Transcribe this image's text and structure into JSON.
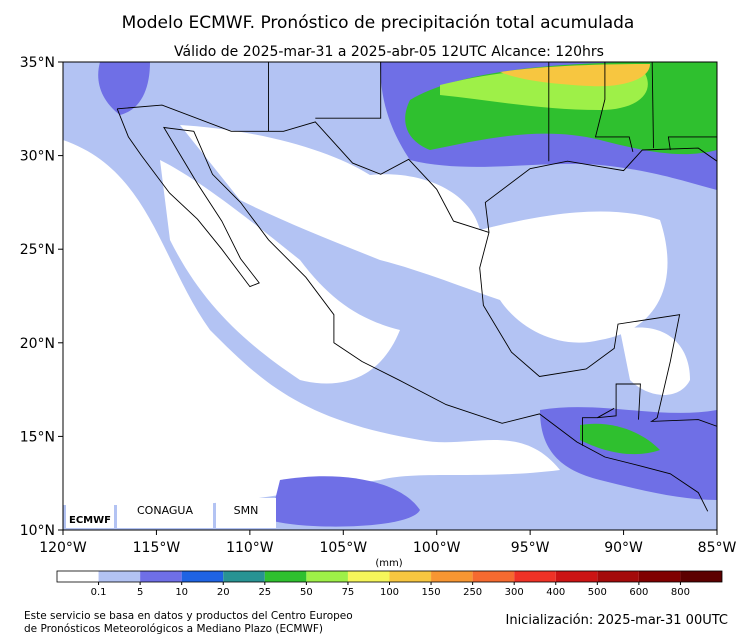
{
  "title": "Modelo ECMWF. Pronóstico de precipitación total acumulada",
  "subtitle": "Válido de 2025-mar-31 a 2025-abr-05 12UTC   Alcance: 120hrs",
  "lat_labels": [
    "35°N",
    "30°N",
    "25°N",
    "20°N",
    "15°N",
    "10°N"
  ],
  "lon_labels": [
    "120°W",
    "115°W",
    "110°W",
    "105°W",
    "100°W",
    "95°W",
    "90°W",
    "85°W"
  ],
  "logos": [
    "ECMWF",
    "CONAGUA",
    "SMN"
  ],
  "colorbar": {
    "unit": "(mm)",
    "labels": [
      0.1,
      5,
      10,
      20,
      25,
      50,
      75,
      100,
      150,
      250,
      300,
      400,
      500,
      600,
      800
    ],
    "colors": [
      "#ffffff",
      "#b3c3f3",
      "#6f6fe6",
      "#1f63e3",
      "#289393",
      "#2fc02f",
      "#9ef048",
      "#f6f65a",
      "#f7c640",
      "#f79632",
      "#f56a30",
      "#ef3226",
      "#cc1414",
      "#a40a0a",
      "#800000",
      "#5c0000"
    ]
  },
  "footer": {
    "left": [
      "Este servicio se basa en datos y productos del Centro Europeo",
      "de Pronósticos Meteorológicos a Mediano Plazo (ECMWF)"
    ],
    "right": "Inicialización: 2025-mar-31 00UTC"
  }
}
